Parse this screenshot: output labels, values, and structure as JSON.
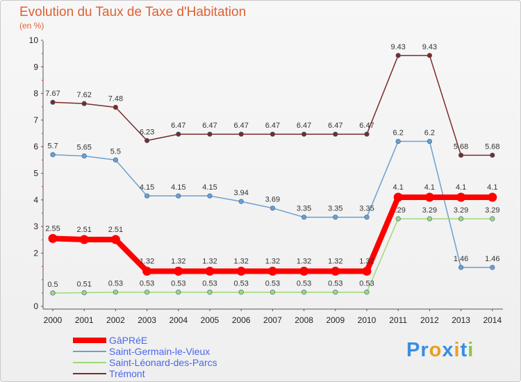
{
  "header": {
    "title": "Evolution du Taux de Taxe d'Habitation",
    "unit": "(en %)"
  },
  "brand": {
    "letters": [
      "P",
      "r",
      "o",
      "x",
      "i",
      "t",
      "i"
    ],
    "colors": [
      "#3a8ee0",
      "#3a8ee0",
      "#e8a020",
      "#3a8ee0",
      "#e8a020",
      "#3a8ee0",
      "#8bc34a"
    ]
  },
  "chart_data": {
    "type": "line",
    "title": "Evolution du Taux de Taxe d'Habitation",
    "ylabel": "(en %)",
    "xlabel": "",
    "ylim": [
      0,
      10
    ],
    "yticks": [
      0,
      2,
      3,
      4,
      5,
      6,
      7,
      8,
      9,
      10
    ],
    "grid": false,
    "legend_position": "bottom-left",
    "x": [
      "2000",
      "2001",
      "2002",
      "2003",
      "2004",
      "2005",
      "2006",
      "2007",
      "2008",
      "2009",
      "2010",
      "2011",
      "2012",
      "2013",
      "2014"
    ],
    "series": [
      {
        "name": "GâPRéE",
        "color": "#ff0000",
        "emphasis": true,
        "values": [
          2.55,
          2.51,
          2.51,
          1.32,
          1.32,
          1.32,
          1.32,
          1.32,
          1.32,
          1.32,
          1.32,
          4.1,
          4.1,
          4.1,
          4.1
        ],
        "labels": [
          "2.55",
          "2.51",
          "2.51",
          "1.32",
          "1.32",
          "1.32",
          "1.32",
          "1.32",
          "1.32",
          "1.32",
          "1.32",
          "4.1",
          "4.1",
          "4.1",
          "4.1"
        ]
      },
      {
        "name": "Saint-Germain-le-Vieux",
        "color": "#6aa0d0",
        "emphasis": false,
        "values": [
          5.7,
          5.65,
          5.5,
          4.15,
          4.15,
          4.15,
          3.94,
          3.69,
          3.35,
          3.35,
          3.35,
          6.2,
          6.2,
          1.46,
          1.46
        ],
        "labels": [
          "5.7",
          "5.65",
          "5.5",
          "4.15",
          "4.15",
          "4.15",
          "3.94",
          "3.69",
          "3.35",
          "3.35",
          "3.35",
          "6.2",
          "6.2",
          "1.46",
          "1.46"
        ]
      },
      {
        "name": "Saint-Léonard-des-Parcs",
        "color": "#9ed878",
        "emphasis": false,
        "values": [
          0.5,
          0.51,
          0.53,
          0.53,
          0.53,
          0.53,
          0.53,
          0.53,
          0.53,
          0.53,
          0.53,
          3.29,
          3.29,
          3.29,
          3.29
        ],
        "labels": [
          "0.5",
          "0.51",
          "0.53",
          "0.53",
          "0.53",
          "0.53",
          "0.53",
          "0.53",
          "0.53",
          "0.53",
          "0.53",
          "3.29",
          "3.29",
          "3.29",
          "3.29"
        ]
      },
      {
        "name": "Trémont",
        "color": "#7a2a2a",
        "emphasis": false,
        "values": [
          7.67,
          7.62,
          7.48,
          6.23,
          6.47,
          6.47,
          6.47,
          6.47,
          6.47,
          6.47,
          6.47,
          9.43,
          9.43,
          5.68,
          5.68
        ],
        "labels": [
          "7.67",
          "7.62",
          "7.48",
          "6.23",
          "6.47",
          "6.47",
          "6.47",
          "6.47",
          "6.47",
          "6.47",
          "6.47",
          "9.43",
          "9.43",
          "5.68",
          "5.68"
        ]
      }
    ]
  }
}
